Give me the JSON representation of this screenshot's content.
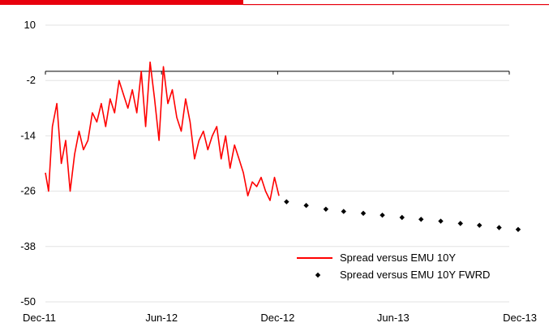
{
  "colors": {
    "series_line": "#ff0000",
    "series_dots": "#000000",
    "header_bar_thick": "#e8000d",
    "header_bar_thin": "#e8000d",
    "zero_line": "#000000",
    "grid": "#e3e3e3"
  },
  "chart_data": {
    "type": "line",
    "title": "",
    "xlabel": "",
    "ylabel": "",
    "ylim": [
      -50,
      10
    ],
    "yticks": [
      10,
      -2,
      -14,
      -26,
      -38,
      -50
    ],
    "ytick_labels": [
      "10",
      "-2",
      "-14",
      "-26",
      "-38",
      "-50"
    ],
    "xlim": [
      "2011-12-01",
      "2013-12-01"
    ],
    "xticks": [
      "2011-12-01",
      "2012-06-01",
      "2012-12-01",
      "2013-06-01",
      "2013-12-01"
    ],
    "xtick_labels": [
      "Dec-11",
      "Jun-12",
      "Dec-12",
      "Jun-13",
      "Dec-13"
    ],
    "grid": "horizontal",
    "zero_reference_line": 0,
    "legend": {
      "placement": "bottom-right"
    },
    "series": [
      {
        "name": "Spread versus EMU 10Y",
        "style": "line",
        "x": [
          "2011-12-01",
          "2011-12-06",
          "2011-12-12",
          "2011-12-19",
          "2011-12-26",
          "2012-01-02",
          "2012-01-09",
          "2012-01-16",
          "2012-01-23",
          "2012-01-30",
          "2012-02-06",
          "2012-02-13",
          "2012-02-20",
          "2012-02-27",
          "2012-03-05",
          "2012-03-12",
          "2012-03-19",
          "2012-03-26",
          "2012-04-02",
          "2012-04-09",
          "2012-04-16",
          "2012-04-23",
          "2012-04-30",
          "2012-05-07",
          "2012-05-14",
          "2012-05-21",
          "2012-05-28",
          "2012-06-04",
          "2012-06-11",
          "2012-06-18",
          "2012-06-25",
          "2012-07-02",
          "2012-07-09",
          "2012-07-16",
          "2012-07-23",
          "2012-07-30",
          "2012-08-06",
          "2012-08-13",
          "2012-08-20",
          "2012-08-27",
          "2012-09-03",
          "2012-09-10",
          "2012-09-17",
          "2012-09-24",
          "2012-10-01",
          "2012-10-08",
          "2012-10-15",
          "2012-10-22",
          "2012-10-29",
          "2012-11-05",
          "2012-11-12",
          "2012-11-19",
          "2012-11-26",
          "2012-12-03"
        ],
        "values": [
          -22,
          -26,
          -12,
          -7,
          -20,
          -15,
          -26,
          -18,
          -13,
          -17,
          -15,
          -9,
          -11,
          -7,
          -12,
          -6,
          -9,
          -2,
          -5,
          -8,
          -4,
          -9,
          0,
          -12,
          2,
          -6,
          -15,
          1,
          -7,
          -4,
          -10,
          -13,
          -6,
          -11,
          -19,
          -15,
          -13,
          -17,
          -14,
          -12,
          -19,
          -14,
          -21,
          -16,
          -19,
          -22,
          -27,
          -24,
          -25,
          -23,
          -26,
          -28,
          -23,
          -27
        ]
      },
      {
        "name": "Spread versus EMU 10Y FWRD",
        "style": "markers",
        "x": [
          "2012-12-15",
          "2013-01-15",
          "2013-02-15",
          "2013-03-15",
          "2013-04-15",
          "2013-05-15",
          "2013-06-15",
          "2013-07-15",
          "2013-08-15",
          "2013-09-15",
          "2013-10-15",
          "2013-11-15",
          "2013-12-15"
        ],
        "values": [
          -28.3,
          -29.1,
          -29.9,
          -30.4,
          -30.8,
          -31.2,
          -31.7,
          -32.1,
          -32.5,
          -33.0,
          -33.4,
          -33.9,
          -34.3
        ]
      }
    ]
  }
}
